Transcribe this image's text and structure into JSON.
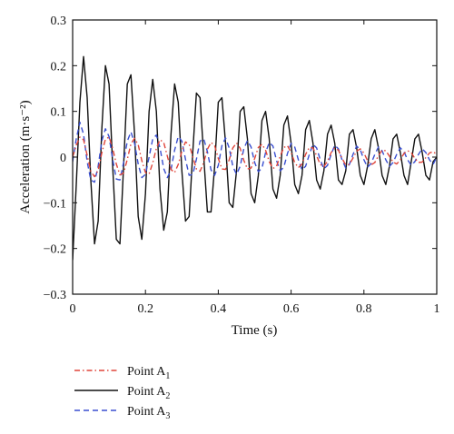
{
  "chart_data": {
    "type": "line",
    "xlabel": "Time (s)",
    "ylabel": "Acceleration (m·s⁻²)",
    "xlim": [
      0,
      1
    ],
    "ylim": [
      -0.3,
      0.3
    ],
    "x_ticks": [
      "0",
      "0.2",
      "0.4",
      "0.6",
      "0.8",
      "1"
    ],
    "y_ticks": [
      "−0.3",
      "−0.2",
      "−0.1",
      "0",
      "0.1",
      "0.2",
      "0.3"
    ],
    "grid": false,
    "legend_position": "below-left",
    "series": [
      {
        "name": "Point A1",
        "legend_base": "Point A",
        "legend_sub": "1",
        "color": "#e0453a",
        "dash": "dash-dot",
        "x": [
          0.0,
          0.01,
          0.02,
          0.03,
          0.04,
          0.05,
          0.06,
          0.07,
          0.08,
          0.09,
          0.1,
          0.11,
          0.12,
          0.13,
          0.14,
          0.15,
          0.16,
          0.17,
          0.18,
          0.19,
          0.2,
          0.21,
          0.22,
          0.23,
          0.24,
          0.25,
          0.26,
          0.27,
          0.28,
          0.29,
          0.3,
          0.31,
          0.32,
          0.33,
          0.34,
          0.35,
          0.36,
          0.37,
          0.38,
          0.39,
          0.4,
          0.41,
          0.42,
          0.43,
          0.44,
          0.45,
          0.46,
          0.47,
          0.48,
          0.49,
          0.5,
          0.51,
          0.52,
          0.53,
          0.54,
          0.55,
          0.56,
          0.57,
          0.58,
          0.59,
          0.6,
          0.61,
          0.62,
          0.63,
          0.64,
          0.65,
          0.66,
          0.67,
          0.68,
          0.69,
          0.7,
          0.71,
          0.72,
          0.73,
          0.74,
          0.75,
          0.76,
          0.77,
          0.78,
          0.79,
          0.8,
          0.81,
          0.82,
          0.83,
          0.84,
          0.85,
          0.86,
          0.87,
          0.88,
          0.89,
          0.9,
          0.91,
          0.92,
          0.93,
          0.94,
          0.95,
          0.96,
          0.97,
          0.98,
          0.99,
          1.0
        ],
        "y": [
          0.0,
          0.026,
          0.044,
          0.038,
          0.004,
          -0.031,
          -0.043,
          -0.029,
          0.009,
          0.039,
          0.044,
          0.019,
          -0.015,
          -0.039,
          -0.035,
          -0.005,
          0.029,
          0.041,
          0.027,
          -0.008,
          -0.034,
          -0.037,
          -0.013,
          0.019,
          0.038,
          0.032,
          0.002,
          -0.027,
          -0.034,
          -0.016,
          0.013,
          0.033,
          0.028,
          0.001,
          -0.026,
          -0.031,
          -0.012,
          0.017,
          0.032,
          0.025,
          -0.003,
          -0.026,
          -0.027,
          -0.006,
          0.02,
          0.031,
          0.019,
          -0.007,
          -0.026,
          -0.024,
          -0.003,
          0.021,
          0.028,
          0.015,
          -0.01,
          -0.025,
          -0.02,
          0.002,
          0.021,
          0.025,
          0.01,
          -0.012,
          -0.023,
          -0.015,
          0.006,
          0.021,
          0.02,
          0.003,
          -0.016,
          -0.021,
          -0.009,
          0.01,
          0.02,
          0.015,
          -0.003,
          -0.017,
          -0.016,
          -0.002,
          0.013,
          0.018,
          0.009,
          -0.008,
          -0.017,
          -0.012,
          0.003,
          0.015,
          0.014,
          0.002,
          -0.011,
          -0.015,
          -0.006,
          0.008,
          0.014,
          0.01,
          -0.003,
          -0.012,
          -0.011,
          -0.001,
          0.009,
          0.012,
          0.006
        ]
      },
      {
        "name": "Point A2",
        "legend_base": "Point A",
        "legend_sub": "2",
        "color": "#111111",
        "dash": "solid",
        "x": [
          0.0,
          0.01,
          0.02,
          0.03,
          0.04,
          0.05,
          0.06,
          0.07,
          0.08,
          0.09,
          0.1,
          0.11,
          0.12,
          0.13,
          0.14,
          0.15,
          0.16,
          0.17,
          0.18,
          0.19,
          0.2,
          0.21,
          0.22,
          0.23,
          0.24,
          0.25,
          0.26,
          0.27,
          0.28,
          0.29,
          0.3,
          0.31,
          0.32,
          0.33,
          0.34,
          0.35,
          0.36,
          0.37,
          0.38,
          0.39,
          0.4,
          0.41,
          0.42,
          0.43,
          0.44,
          0.45,
          0.46,
          0.47,
          0.48,
          0.49,
          0.5,
          0.51,
          0.52,
          0.53,
          0.54,
          0.55,
          0.56,
          0.57,
          0.58,
          0.59,
          0.6,
          0.61,
          0.62,
          0.63,
          0.64,
          0.65,
          0.66,
          0.67,
          0.68,
          0.69,
          0.7,
          0.71,
          0.72,
          0.73,
          0.74,
          0.75,
          0.76,
          0.77,
          0.78,
          0.79,
          0.8,
          0.81,
          0.82,
          0.83,
          0.84,
          0.85,
          0.86,
          0.87,
          0.88,
          0.89,
          0.9,
          0.91,
          0.92,
          0.93,
          0.94,
          0.95,
          0.96,
          0.97,
          0.98,
          0.99,
          1.0
        ],
        "y": [
          -0.225,
          -0.06,
          0.12,
          0.22,
          0.13,
          -0.05,
          -0.19,
          -0.14,
          0.06,
          0.2,
          0.16,
          -0.02,
          -0.18,
          -0.19,
          -0.02,
          0.16,
          0.18,
          0.05,
          -0.13,
          -0.18,
          -0.08,
          0.1,
          0.17,
          0.1,
          -0.07,
          -0.16,
          -0.12,
          0.05,
          0.16,
          0.12,
          -0.03,
          -0.14,
          -0.13,
          0.01,
          0.14,
          0.13,
          0.0,
          -0.12,
          -0.12,
          -0.02,
          0.12,
          0.13,
          0.03,
          -0.1,
          -0.11,
          -0.03,
          0.1,
          0.11,
          0.04,
          -0.08,
          -0.1,
          -0.04,
          0.08,
          0.1,
          0.04,
          -0.07,
          -0.09,
          -0.04,
          0.07,
          0.09,
          0.03,
          -0.06,
          -0.08,
          -0.04,
          0.06,
          0.08,
          0.03,
          -0.05,
          -0.07,
          -0.03,
          0.05,
          0.07,
          0.03,
          -0.05,
          -0.06,
          -0.03,
          0.05,
          0.06,
          0.02,
          -0.04,
          -0.06,
          -0.02,
          0.04,
          0.06,
          0.02,
          -0.04,
          -0.06,
          -0.02,
          0.04,
          0.05,
          0.01,
          -0.04,
          -0.06,
          -0.01,
          0.04,
          0.05,
          0.01,
          -0.04,
          -0.05,
          -0.01,
          0.0
        ]
      },
      {
        "name": "Point A3",
        "legend_base": "Point A",
        "legend_sub": "3",
        "color": "#3a4fd0",
        "dash": "dashed",
        "x": [
          0.0,
          0.01,
          0.02,
          0.03,
          0.04,
          0.05,
          0.06,
          0.07,
          0.08,
          0.09,
          0.1,
          0.11,
          0.12,
          0.13,
          0.14,
          0.15,
          0.16,
          0.17,
          0.18,
          0.19,
          0.2,
          0.21,
          0.22,
          0.23,
          0.24,
          0.25,
          0.26,
          0.27,
          0.28,
          0.29,
          0.3,
          0.31,
          0.32,
          0.33,
          0.34,
          0.35,
          0.36,
          0.37,
          0.38,
          0.39,
          0.4,
          0.41,
          0.42,
          0.43,
          0.44,
          0.45,
          0.46,
          0.47,
          0.48,
          0.49,
          0.5,
          0.51,
          0.52,
          0.53,
          0.54,
          0.55,
          0.56,
          0.57,
          0.58,
          0.59,
          0.6,
          0.61,
          0.62,
          0.63,
          0.64,
          0.65,
          0.66,
          0.67,
          0.68,
          0.69,
          0.7,
          0.71,
          0.72,
          0.73,
          0.74,
          0.75,
          0.76,
          0.77,
          0.78,
          0.79,
          0.8,
          0.81,
          0.82,
          0.83,
          0.84,
          0.85,
          0.86,
          0.87,
          0.88,
          0.89,
          0.9,
          0.91,
          0.92,
          0.93,
          0.94,
          0.95,
          0.96,
          0.97,
          0.98,
          0.99,
          1.0
        ],
        "y": [
          -0.01,
          0.04,
          0.076,
          0.05,
          -0.01,
          -0.05,
          -0.055,
          -0.02,
          0.035,
          0.062,
          0.045,
          -0.005,
          -0.048,
          -0.05,
          -0.012,
          0.035,
          0.055,
          0.03,
          -0.015,
          -0.045,
          -0.038,
          0.0,
          0.04,
          0.048,
          0.02,
          -0.025,
          -0.045,
          -0.028,
          0.015,
          0.045,
          0.035,
          -0.005,
          -0.04,
          -0.038,
          -0.005,
          0.035,
          0.04,
          0.012,
          -0.028,
          -0.04,
          -0.018,
          0.025,
          0.042,
          0.02,
          -0.02,
          -0.038,
          -0.02,
          0.018,
          0.036,
          0.022,
          -0.012,
          -0.032,
          -0.024,
          0.01,
          0.032,
          0.024,
          -0.008,
          -0.03,
          -0.022,
          0.008,
          0.03,
          0.022,
          -0.006,
          -0.028,
          -0.02,
          0.006,
          0.028,
          0.02,
          -0.006,
          -0.026,
          -0.018,
          0.006,
          0.026,
          0.018,
          -0.006,
          -0.024,
          -0.016,
          0.006,
          0.024,
          0.016,
          -0.006,
          -0.022,
          -0.014,
          0.006,
          0.022,
          0.014,
          -0.006,
          -0.02,
          -0.012,
          0.006,
          0.02,
          0.012,
          -0.006,
          -0.018,
          -0.01,
          0.006,
          0.018,
          0.01,
          -0.006,
          -0.016,
          0.0
        ]
      }
    ]
  }
}
